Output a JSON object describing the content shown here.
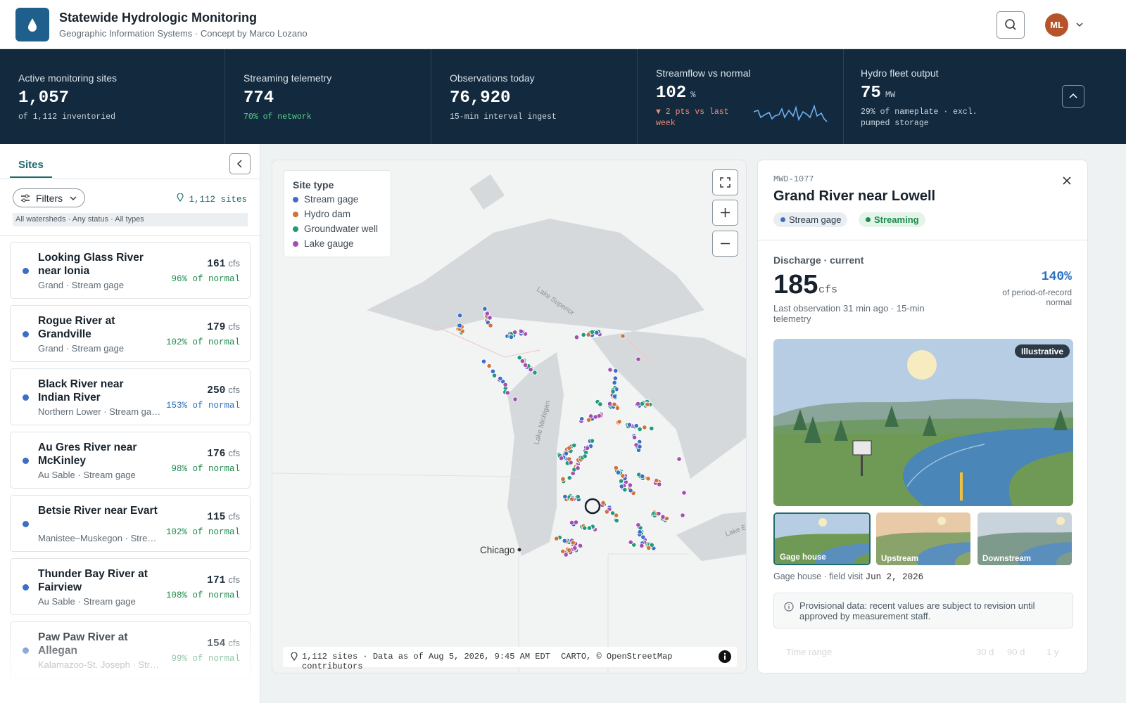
{
  "header": {
    "title": "Statewide Hydrologic Monitoring",
    "subtitle": "Geographic Information Systems · Concept by Marco Lozano",
    "avatar": "ML"
  },
  "kpis": [
    {
      "label": "Active monitoring sites",
      "value": "1,057",
      "note": "of 1,112 inventoried"
    },
    {
      "label": "Streaming telemetry",
      "value": "774",
      "note": "70% of network"
    },
    {
      "label": "Observations today",
      "value": "76,920",
      "note": "15-min interval ingest"
    },
    {
      "label": "Streamflow vs normal",
      "value": "102",
      "unit": "%",
      "note": "▼ 2 pts vs last week"
    },
    {
      "label": "Hydro fleet output",
      "value": "75",
      "unit": "MW",
      "note": "29% of nameplate · excl. pumped storage"
    }
  ],
  "sidebar": {
    "tab": "Sites",
    "filters": "Filters",
    "count": "1,112 sites",
    "filter_summary": "All watersheds · Any status · All types",
    "sites": [
      {
        "name": "Looking Glass River near Ionia",
        "meta": "Grand · Stream gage",
        "value": "161",
        "unit": "cfs",
        "pct": "96% of normal",
        "pct_color": "#1f8a4c"
      },
      {
        "name": "Rogue River at Grandville",
        "meta": "Grand · Stream gage",
        "value": "179",
        "unit": "cfs",
        "pct": "102% of normal",
        "pct_color": "#1f8a4c"
      },
      {
        "name": "Black River near Indian River",
        "meta": "Northern Lower · Stream gage",
        "value": "250",
        "unit": "cfs",
        "pct": "153% of normal",
        "pct_color": "#2a6fc0"
      },
      {
        "name": "Au Gres River near McKinley",
        "meta": "Au Sable · Stream gage",
        "value": "176",
        "unit": "cfs",
        "pct": "98% of normal",
        "pct_color": "#1f8a4c"
      },
      {
        "name": "Betsie River near Evart",
        "meta": "Manistee–Muskegon · Stream gage",
        "value": "115",
        "unit": "cfs",
        "pct": "102% of normal",
        "pct_color": "#1f8a4c"
      },
      {
        "name": "Thunder Bay River at Fairview",
        "meta": "Au Sable · Stream gage",
        "value": "171",
        "unit": "cfs",
        "pct": "108% of normal",
        "pct_color": "#1f8a4c"
      },
      {
        "name": "Paw Paw River at Allegan",
        "meta": "Kalamazoo-St. Joseph · Stream gage",
        "value": "154",
        "unit": "cfs",
        "pct": "99% of normal",
        "pct_color": "#1f8a4c"
      }
    ]
  },
  "map": {
    "legend_title": "Site type",
    "legend": [
      {
        "label": "Stream gage",
        "color": "#3d6fc6"
      },
      {
        "label": "Hydro dam",
        "color": "#d0723a"
      },
      {
        "label": "Groundwater well",
        "color": "#1f9a7a"
      },
      {
        "label": "Lake gauge",
        "color": "#a24fb0"
      }
    ],
    "lake_superior": "Lake Superior",
    "lake_michigan": "Lake Michigan",
    "lake_erie": "Lake Erie",
    "city": "Chicago",
    "footer": "1,112 sites · Data as of Aug 5, 2026, 9:45 AM EDT",
    "attribution": "CARTO, © OpenStreetMap contributors"
  },
  "detail": {
    "id": "MWD-1077",
    "title": "Grand River near Lowell",
    "tags": [
      "Stream gage",
      "Streaming"
    ],
    "discharge_label": "Discharge · current",
    "value": "185",
    "unit": "cfs",
    "last_obs": "Last observation 31 min ago · 15-min telemetry",
    "pct": "140%",
    "pct_note": "of period-of-record normal",
    "badge": "Illustrative",
    "thumbs": [
      "Gage house",
      "Upstream",
      "Downstream"
    ],
    "caption": "Gage house · field visit",
    "caption_date": "Jun 2, 2026",
    "notice": "Provisional data: recent values are subject to revision until approved by measurement staff.",
    "time_range": "Time range",
    "ranges": [
      "30 d",
      "90 d",
      "1 y"
    ]
  }
}
